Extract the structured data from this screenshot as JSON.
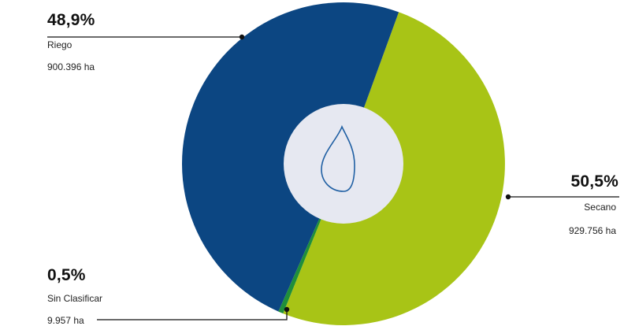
{
  "chart_data": {
    "type": "pie",
    "variant": "donut",
    "slices": [
      {
        "name": "Riego",
        "percent_label": "48,9%",
        "area_label": "900.396 ha",
        "value": 48.9,
        "area_ha": 900396,
        "color": "#0c4682"
      },
      {
        "name": "Secano",
        "percent_label": "50,5%",
        "area_label": "929.756 ha",
        "value": 50.5,
        "area_ha": 929756,
        "color": "#a8c416"
      },
      {
        "name": "Sin Clasificar",
        "percent_label": "0,5%",
        "area_label": "9.957 ha",
        "value": 0.5,
        "area_ha": 9957,
        "color": "#1f8f3a"
      }
    ],
    "center_icon": "water-drop-icon",
    "center_fill": "#e6e8f1",
    "legend": "leader-lines"
  }
}
